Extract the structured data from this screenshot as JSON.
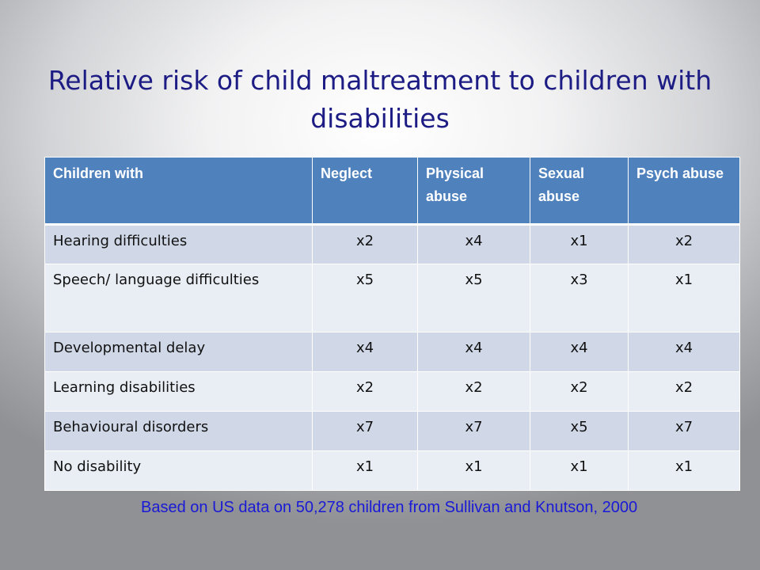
{
  "slide": {
    "title": "Relative risk of child maltreatment to children with disabilities",
    "caption": "Based on US data on 50,278 children from Sullivan and Knutson, 2000"
  },
  "table": {
    "headers": [
      "Children with",
      "Neglect",
      "Physical abuse",
      "Sexual abuse",
      "Psych abuse"
    ],
    "rows": [
      {
        "label": "Hearing difficulties",
        "values": [
          "x2",
          "x4",
          "x1",
          "x2"
        ]
      },
      {
        "label": "Speech/ language difficulties",
        "values": [
          "x5",
          "x5",
          "x3",
          "x1"
        ]
      },
      {
        "label": "Developmental delay",
        "values": [
          "x4",
          "x4",
          "x4",
          "x4"
        ]
      },
      {
        "label": "Learning disabilities",
        "values": [
          "x2",
          "x2",
          "x2",
          "x2"
        ]
      },
      {
        "label": "Behavioural disorders",
        "values": [
          "x7",
          "x7",
          "x5",
          "x7"
        ]
      },
      {
        "label": "No disability",
        "values": [
          "x1",
          "x1",
          "x1",
          "x1"
        ]
      }
    ]
  },
  "colors": {
    "header_fill": "#4f81bd",
    "row_band_dark": "#d0d8e8",
    "row_band_light": "#e9edf4",
    "title_text": "#1c1c84",
    "caption_text": "#1a1ad6"
  }
}
